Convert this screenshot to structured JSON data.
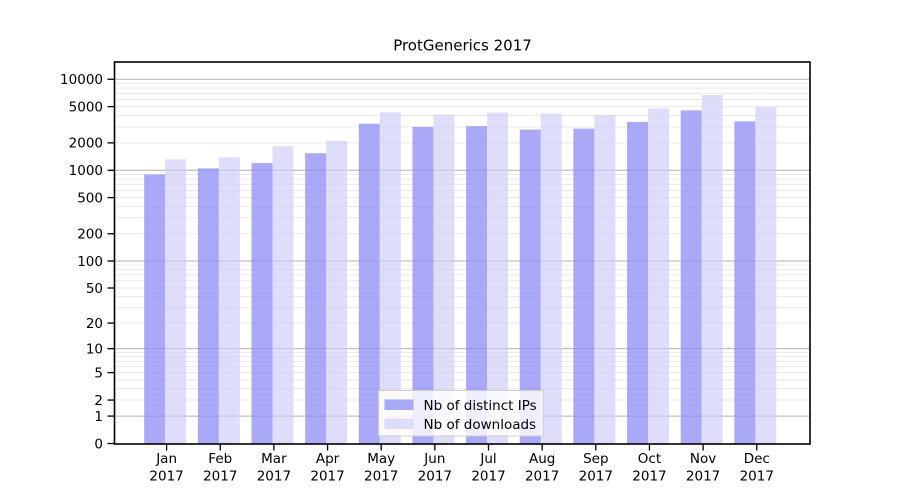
{
  "title": "ProtGenerics 2017",
  "chart_data": {
    "type": "bar",
    "title": "ProtGenerics 2017",
    "year": "2017",
    "categories": [
      "Jan 2017",
      "Feb 2017",
      "Mar 2017",
      "Apr 2017",
      "May 2017",
      "Jun 2017",
      "Jul 2017",
      "Aug 2017",
      "Sep 2017",
      "Oct 2017",
      "Nov 2017",
      "Dec 2017"
    ],
    "series": [
      {
        "name": "Nb of distinct IPs",
        "color": "rgba(140,140,245,0.75)",
        "values": [
          900,
          1050,
          1200,
          1540,
          3250,
          3000,
          3050,
          2800,
          2870,
          3400,
          4550,
          3450
        ]
      },
      {
        "name": "Nb of downloads",
        "color": "rgba(205,205,247,0.65)",
        "values": [
          1320,
          1390,
          1840,
          2100,
          4350,
          4100,
          4300,
          4200,
          4050,
          4780,
          6700,
          4980
        ]
      }
    ],
    "yscale": "log1p",
    "ylim": [
      0,
      15500
    ],
    "yticks": [
      10000,
      5000,
      2000,
      1000,
      500,
      200,
      100,
      50,
      20,
      10,
      5,
      2,
      1,
      0
    ],
    "grid": {
      "orientation": "horizontal",
      "major_color": "#b3b3b3",
      "minor_color": "#eaeaea",
      "majors": [
        1,
        10,
        100,
        1000,
        10000
      ],
      "minor_steps": [
        2,
        3,
        4,
        5,
        6,
        7,
        8,
        9
      ]
    },
    "legend": {
      "position": "inside-bottom-center",
      "items": [
        "Nb of distinct IPs",
        "Nb of downloads"
      ],
      "border_color": "#cccccc",
      "background": "rgba(255,255,255,0.8)"
    },
    "axis_color": "#000000",
    "background": "#ffffff"
  }
}
